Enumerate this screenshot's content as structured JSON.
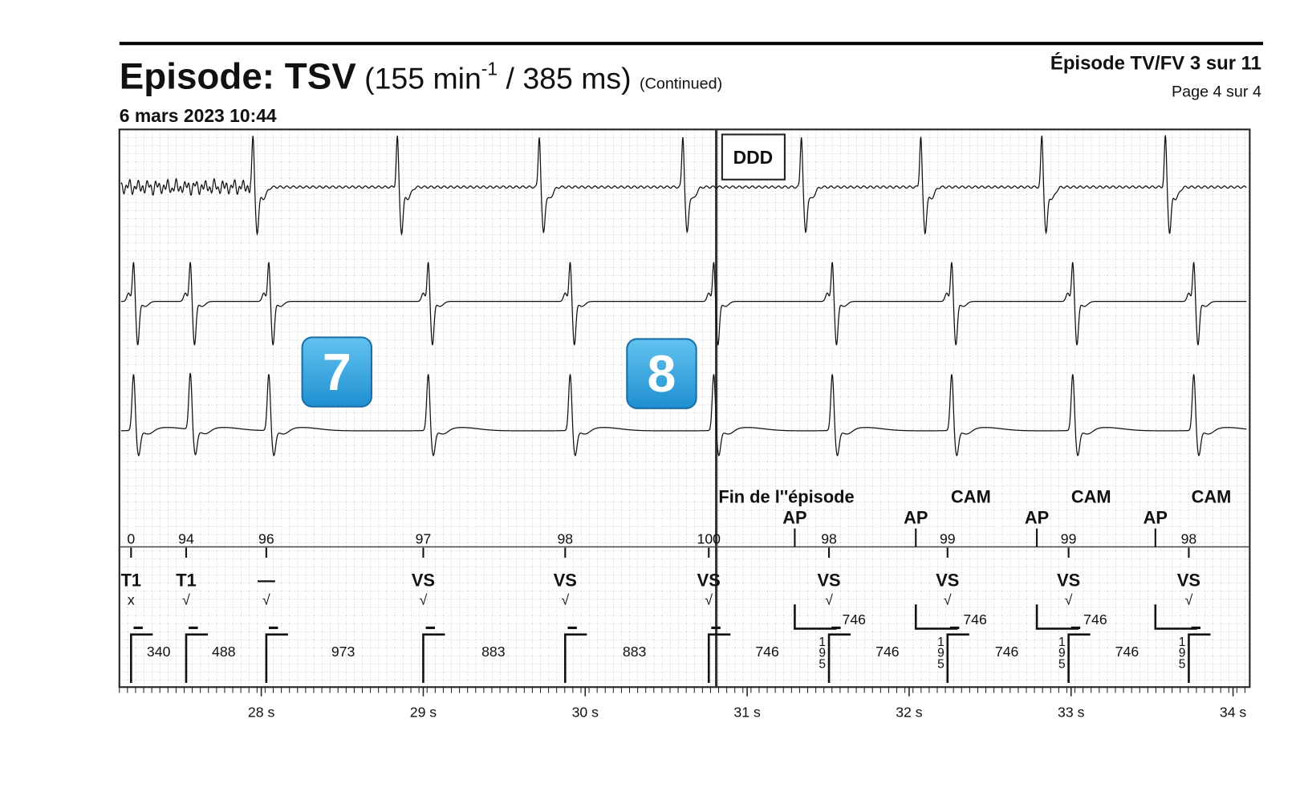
{
  "header": {
    "title": "Episode: TSV",
    "rate_open": "(155 min",
    "rate_sup": "-1",
    "rate_close": " / 385 ms)",
    "continued": "(Continued)",
    "episode": "Épisode TV/FV 3 sur 11",
    "page": "Page 4 sur 4",
    "date": "6 mars 2023 10:44"
  },
  "mode": "DDD",
  "badges": [
    "7",
    "8"
  ],
  "annotations": {
    "end": "Fin de l''épisode",
    "ap": [
      "AP",
      "AP",
      "AP",
      "AP"
    ],
    "cam": [
      "CAM",
      "CAM",
      "CAM"
    ]
  },
  "markers": {
    "top": [
      "0",
      "94",
      "96",
      "97",
      "98",
      "100",
      "98",
      "99",
      "99",
      "98"
    ],
    "bottom": [
      "T1",
      "T1",
      "—",
      "VS",
      "VS",
      "VS",
      "VS",
      "VS",
      "VS",
      "VS"
    ],
    "checks": [
      "x",
      "√",
      "√",
      "√",
      "√",
      "√",
      "√",
      "√",
      "√",
      "√"
    ]
  },
  "intervals": {
    "main": [
      "340",
      "488",
      "973",
      "883",
      "883",
      "746",
      "746",
      "746",
      "746"
    ],
    "upper": [
      "746",
      "746",
      "746"
    ],
    "vertical": [
      "195",
      "195",
      "195",
      "195"
    ]
  },
  "time_axis": [
    "28 s",
    "29 s",
    "30 s",
    "31 s",
    "32 s",
    "33 s",
    "34 s"
  ]
}
